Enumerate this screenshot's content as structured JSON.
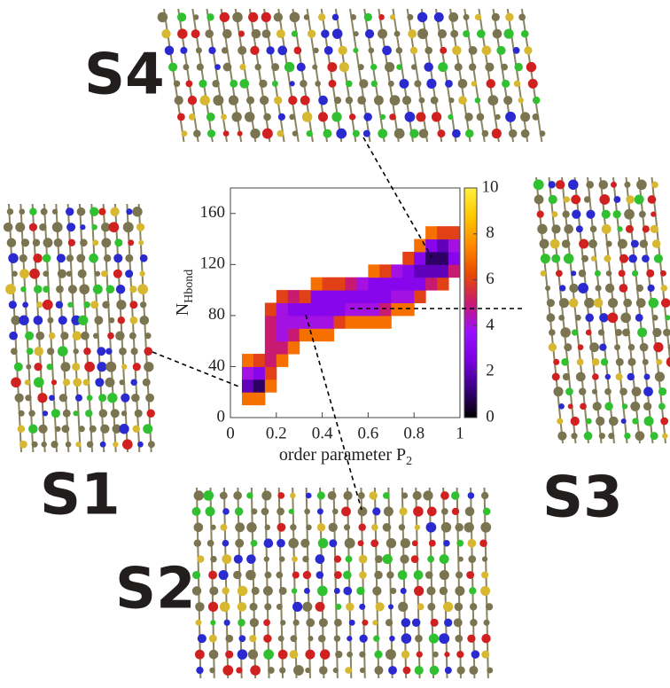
{
  "chart_data": {
    "type": "heatmap",
    "xlabel": "order parameter P",
    "xlabel_sub": "2",
    "ylabel": "N",
    "ylabel_sub": "Hbond",
    "xlim": [
      0,
      1
    ],
    "ylim": [
      0,
      180
    ],
    "zlim": [
      0,
      10
    ],
    "xticks": [
      0,
      0.2,
      0.4,
      0.6,
      0.8,
      1
    ],
    "yticks": [
      0,
      40,
      80,
      120,
      160
    ],
    "zticks": [
      0,
      2,
      4,
      6,
      8,
      10
    ],
    "colormap": [
      "#000000",
      "#3a0080",
      "#7a00e0",
      "#9a10ff",
      "#c81a70",
      "#e84a00",
      "#ff8a00",
      "#ffc800",
      "#fff040"
    ],
    "x_bins": [
      0,
      0.05,
      0.1,
      0.15,
      0.2,
      0.25,
      0.3,
      0.35,
      0.4,
      0.45,
      0.5,
      0.55,
      0.6,
      0.65,
      0.7,
      0.75,
      0.8,
      0.85,
      0.9,
      0.95,
      1
    ],
    "y_bins": [
      10,
      20,
      30,
      40,
      50,
      60,
      70,
      80,
      90,
      100,
      110,
      120,
      130,
      140,
      150
    ],
    "z": [
      [
        null,
        7,
        7,
        null,
        null,
        null,
        null,
        null,
        null,
        null,
        null,
        null,
        null,
        null,
        null,
        null,
        null,
        null,
        null,
        null
      ],
      [
        null,
        2,
        1,
        7,
        null,
        null,
        null,
        null,
        null,
        null,
        null,
        null,
        null,
        null,
        null,
        null,
        null,
        null,
        null,
        null
      ],
      [
        null,
        4,
        3,
        6,
        null,
        null,
        null,
        null,
        null,
        null,
        null,
        null,
        null,
        null,
        null,
        null,
        null,
        null,
        null,
        null
      ],
      [
        null,
        7,
        6,
        5,
        7,
        null,
        null,
        null,
        null,
        null,
        null,
        null,
        null,
        null,
        null,
        null,
        null,
        null,
        null,
        null
      ],
      [
        null,
        null,
        null,
        5,
        5,
        7,
        null,
        null,
        null,
        null,
        null,
        null,
        null,
        null,
        null,
        null,
        null,
        null,
        null,
        null
      ],
      [
        null,
        null,
        null,
        5,
        4,
        5,
        7,
        7,
        7,
        null,
        null,
        null,
        null,
        null,
        null,
        null,
        null,
        null,
        null,
        null
      ],
      [
        null,
        null,
        null,
        5,
        4,
        4,
        4,
        4,
        4,
        6,
        7,
        7,
        7,
        7,
        null,
        null,
        null,
        null,
        null,
        null
      ],
      [
        null,
        null,
        null,
        6,
        4,
        3,
        3,
        3,
        3,
        3,
        4,
        4,
        4,
        5,
        7,
        7,
        null,
        null,
        null,
        null
      ],
      [
        null,
        null,
        null,
        null,
        6,
        5,
        6,
        3,
        3,
        3,
        3,
        3,
        3,
        3,
        4,
        4,
        6,
        null,
        null,
        null
      ],
      [
        null,
        null,
        null,
        null,
        null,
        null,
        null,
        7,
        6,
        6,
        5,
        4,
        3,
        3,
        3,
        3,
        3,
        5,
        6,
        null
      ],
      [
        null,
        null,
        null,
        null,
        null,
        null,
        null,
        null,
        null,
        null,
        null,
        null,
        7,
        6,
        4,
        3,
        2,
        2,
        2,
        5
      ],
      [
        null,
        null,
        null,
        null,
        null,
        null,
        null,
        null,
        null,
        null,
        null,
        null,
        null,
        null,
        null,
        6,
        3,
        1,
        1,
        3
      ],
      [
        null,
        null,
        null,
        null,
        null,
        null,
        null,
        null,
        null,
        null,
        null,
        null,
        null,
        null,
        null,
        null,
        7,
        3,
        2,
        4
      ],
      [
        null,
        null,
        null,
        null,
        null,
        null,
        null,
        null,
        null,
        null,
        null,
        null,
        null,
        null,
        null,
        null,
        null,
        7,
        6,
        6
      ]
    ],
    "annotations": [
      "S1",
      "S2",
      "S3",
      "S4"
    ]
  }
}
